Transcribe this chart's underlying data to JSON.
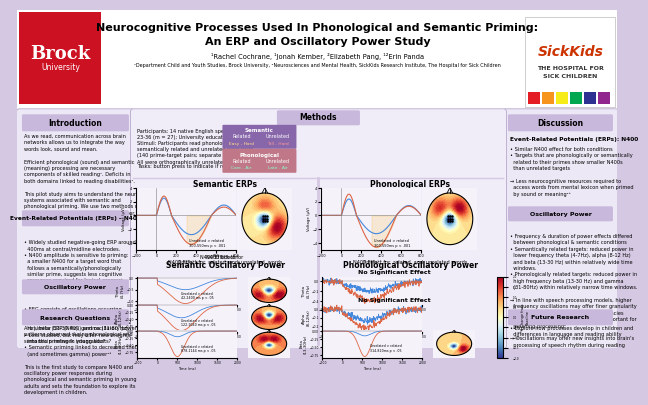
{
  "title_line1": "Neurocognitive Processes Used In Phonological and Semantic Priming:",
  "title_line2": "An ERP and Oscillatory Power Study",
  "authors": "¹Rachel Cochrane, ¹Jonah Kember, ²Elizabeth Pang, ¹²Erin Panda",
  "affiliation": "¹Department Child and Youth Studies, Brock University, ²Neurosciences and Mental Health, SickKids Research Institute, The Hospital for Sick Children",
  "bg_color": "#d4c8e2",
  "header_bg": "#ffffff",
  "panel_bg": "#ede8f5",
  "panel_inner": "#f5f2fa",
  "brock_red": "#cc1122",
  "title_color": "#000000",
  "intro_title": "Introduction",
  "erp_title": "Event-Related Potentials (ERPs) – N400",
  "osc_title": "Oscillatory Power",
  "rq_title": "Research Questions",
  "methods_title": "Methods",
  "sem_erp_title": "Semantic ERPs",
  "phon_erp_title": "Phonological ERPs",
  "sem_osc_title": "Semantic Oscillatory Power",
  "phon_osc_title": "Phonological Oscillatory Power",
  "disc_title": "Discussion",
  "erp_disc_title": "Event-Related Potentials (ERPs): N400",
  "osc_disc_title": "Oscillatory Power",
  "future_title": "Future Research",
  "purple_color": "#7b5ea8",
  "pink_color": "#c87890",
  "section_title_bg": "#c8b8dc",
  "subsect_bg": "#c8b8dc"
}
